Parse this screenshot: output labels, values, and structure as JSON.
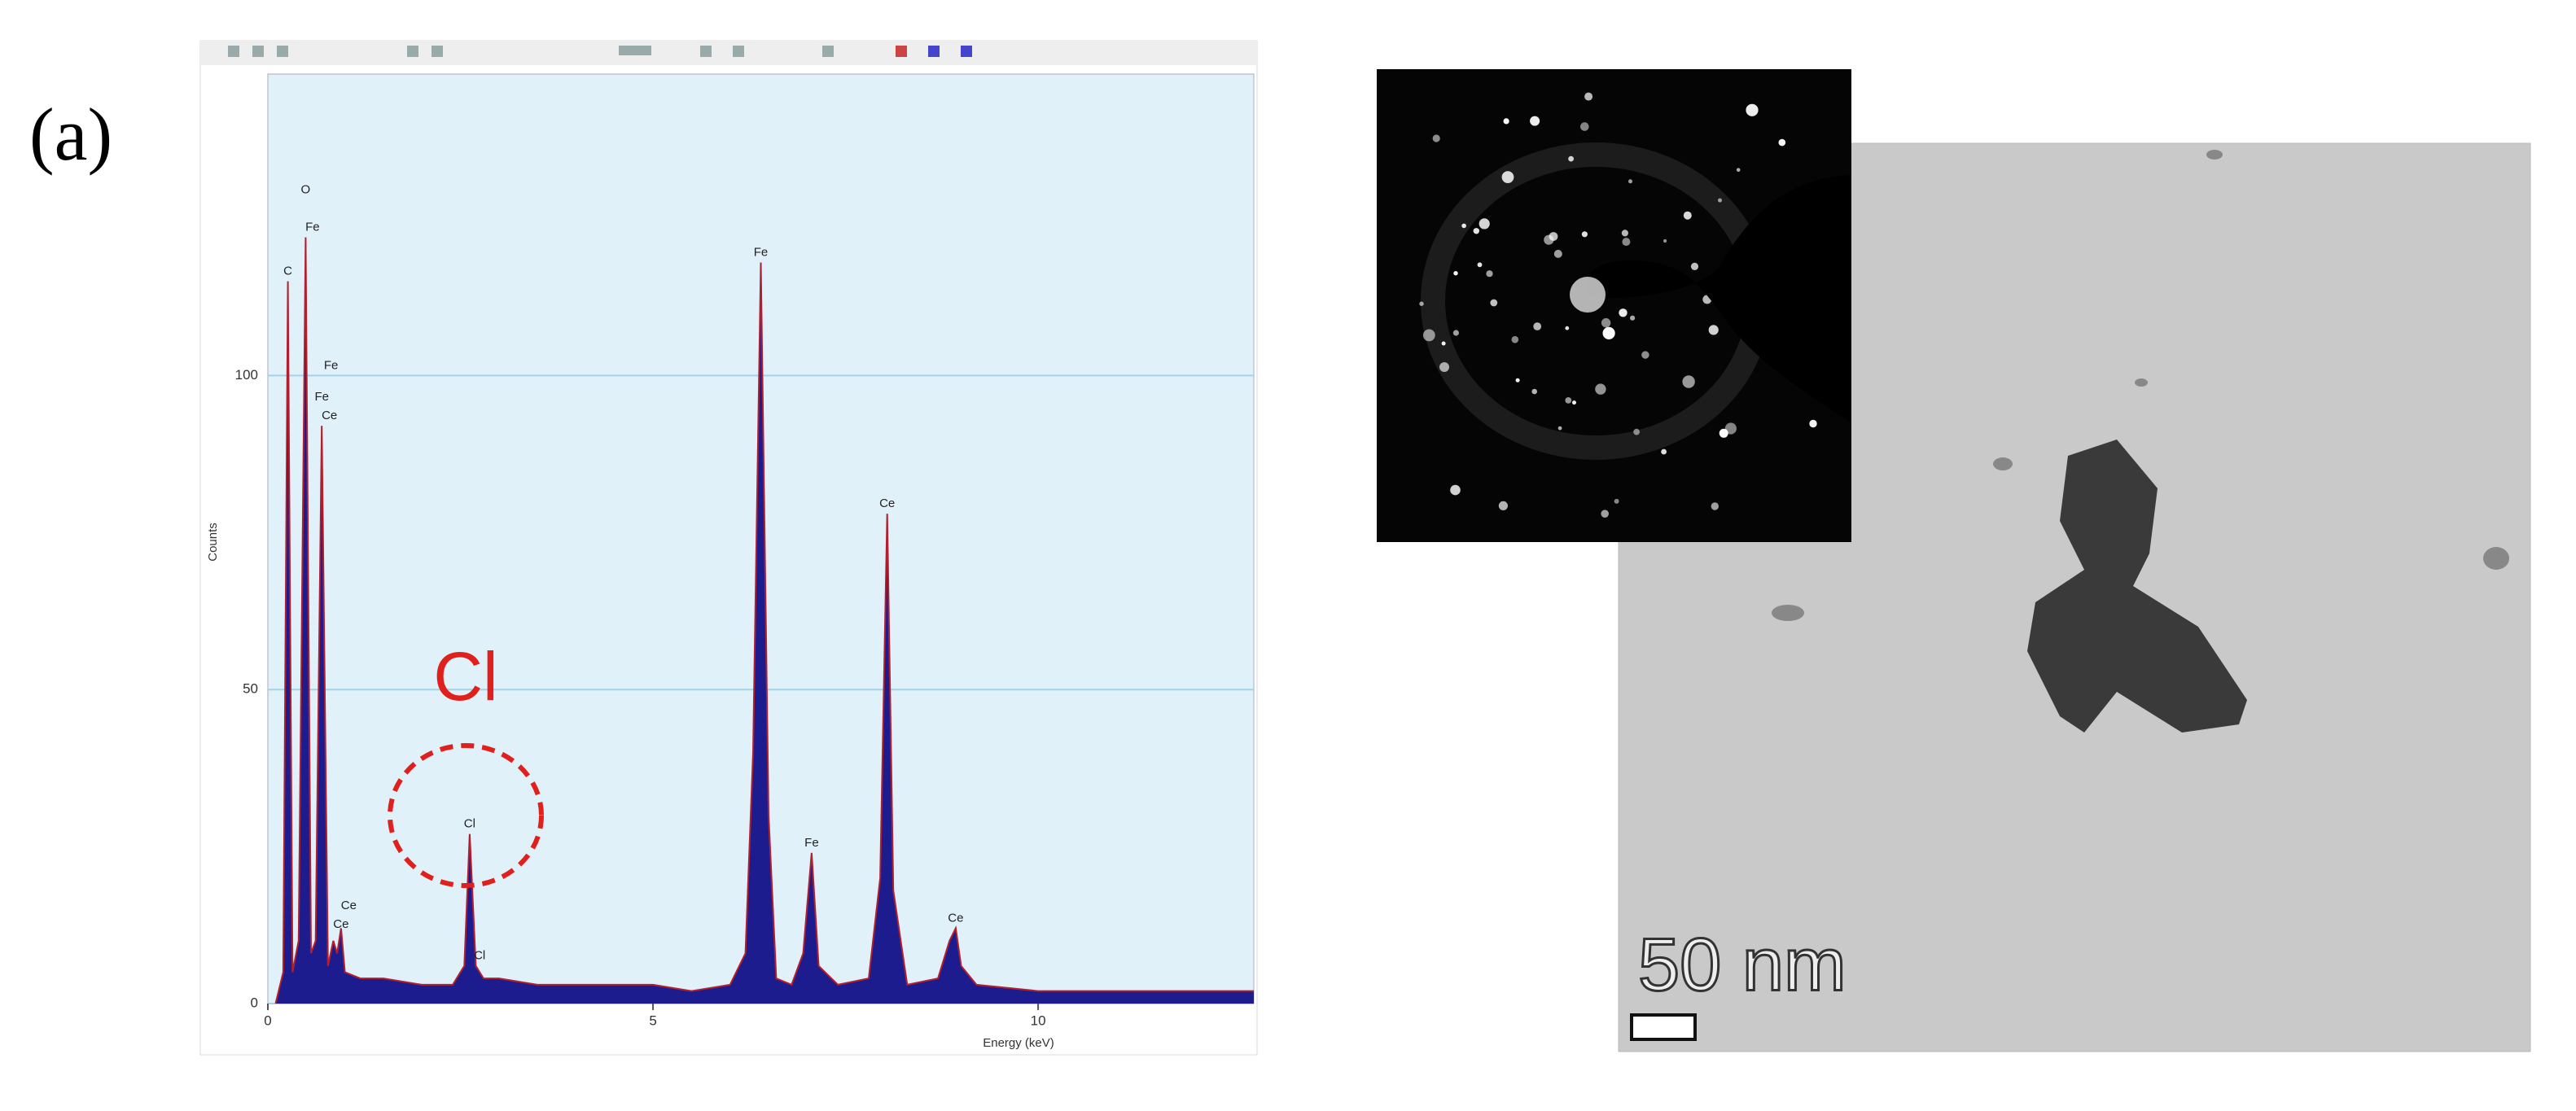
{
  "panel_label": "(a)",
  "chart_data": {
    "type": "area",
    "y_label": "Counts",
    "x_label": "Energy (keV)",
    "x": [
      0.1,
      0.2,
      0.26,
      0.32,
      0.4,
      0.49,
      0.56,
      0.62,
      0.7,
      0.78,
      0.85,
      0.9,
      0.95,
      1.0,
      1.2,
      1.5,
      2.0,
      2.4,
      2.55,
      2.62,
      2.7,
      2.8,
      3.0,
      3.5,
      4.0,
      4.5,
      5.0,
      5.5,
      6.0,
      6.2,
      6.3,
      6.4,
      6.5,
      6.6,
      6.8,
      6.95,
      7.06,
      7.15,
      7.4,
      7.8,
      7.95,
      8.04,
      8.12,
      8.3,
      8.7,
      8.85,
      8.93,
      9.0,
      9.2,
      10.0,
      11.0,
      12.0,
      12.8
    ],
    "values": [
      0,
      5,
      115,
      5,
      10,
      122,
      8,
      10,
      92,
      6,
      10,
      8,
      12,
      5,
      4,
      4,
      3,
      3,
      6,
      27,
      6,
      4,
      4,
      3,
      3,
      3,
      3,
      2,
      3,
      8,
      40,
      118,
      30,
      4,
      3,
      8,
      24,
      6,
      3,
      4,
      20,
      78,
      18,
      3,
      4,
      10,
      12,
      6,
      3,
      2,
      2,
      2,
      2
    ],
    "color": "#1c1c8f",
    "outline_color": "#b0202e",
    "xlim": [
      0,
      12.8
    ],
    "ylim": [
      0,
      148
    ],
    "xticks": [
      0,
      5,
      10
    ],
    "yticks": [
      0,
      50,
      100
    ],
    "grid": true,
    "annotations": [
      {
        "text": "C",
        "x": 0.26,
        "y": 115
      },
      {
        "text": "O",
        "x": 0.49,
        "y": 128
      },
      {
        "text": "Fe",
        "x": 0.58,
        "y": 122
      },
      {
        "text": "Fe",
        "x": 0.82,
        "y": 100
      },
      {
        "text": "Fe",
        "x": 0.7,
        "y": 95
      },
      {
        "text": "Ce",
        "x": 0.8,
        "y": 92
      },
      {
        "text": "Ce",
        "x": 1.05,
        "y": 14
      },
      {
        "text": "Ce",
        "x": 0.95,
        "y": 11
      },
      {
        "text": "Cl",
        "x": 2.62,
        "y": 27
      },
      {
        "text": "Cl",
        "x": 2.75,
        "y": 6
      },
      {
        "text": "Fe",
        "x": 6.4,
        "y": 118
      },
      {
        "text": "Fe",
        "x": 7.06,
        "y": 24
      },
      {
        "text": "Ce",
        "x": 8.04,
        "y": 78
      },
      {
        "text": "Ce",
        "x": 8.93,
        "y": 12
      }
    ],
    "callout": "Cl"
  },
  "scale_bar": "50 nm"
}
